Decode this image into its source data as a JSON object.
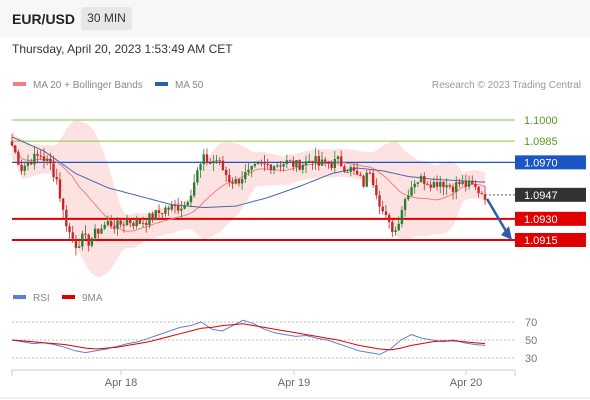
{
  "header": {
    "symbol": "EUR/USD",
    "timeframe": "30 MIN",
    "timestamp": "Thursday, April 20, 2023 1:53:49 AM CET"
  },
  "legend": {
    "ma20_label": "MA 20 + Bollinger Bands",
    "ma50_label": "MA 50",
    "credit": "Research © 2023 Trading Central"
  },
  "rsi_legend": {
    "rsi_label": "RSI",
    "ma_label": "9MA"
  },
  "colors": {
    "ma20": "#f08080",
    "bollinger_fill": "#fde2e2",
    "ma50": "#4a67b0",
    "candle_up": "#2e7d32",
    "candle_down": "#c62828",
    "support": "#e00000",
    "resistance": "#8bc34a",
    "pivot": "#1a56c4",
    "last_price": "#333333",
    "arrow": "#2d5fa6",
    "rsi": "#5b7fd6",
    "rsi_ma": "#e00000"
  },
  "chart_data": [
    {
      "type": "candlestick",
      "title": "EUR/USD 30 MIN",
      "x_tick_labels": [
        "Apr 18",
        "Apr 19",
        "Apr 20"
      ],
      "ylim": [
        1.0895,
        1.1015
      ],
      "levels": [
        {
          "value": 1.1,
          "label": "1.1000",
          "kind": "resistance"
        },
        {
          "value": 1.0985,
          "label": "1.0985",
          "kind": "resistance"
        },
        {
          "value": 1.097,
          "label": "1.0970",
          "kind": "pivot"
        },
        {
          "value": 1.093,
          "label": "1.0930",
          "kind": "support"
        },
        {
          "value": 1.0915,
          "label": "1.0915",
          "kind": "support"
        }
      ],
      "last_price": {
        "value": 1.0947,
        "label": "1.0947"
      },
      "forecast": "down toward 1.0915",
      "series": [
        {
          "name": "MA 20 + Bollinger Bands",
          "indicator": "ma20_bollinger"
        },
        {
          "name": "MA 50",
          "indicator": "ma50"
        }
      ],
      "price_path": [
        [
          0,
          1.0982
        ],
        [
          3,
          1.0966
        ],
        [
          6,
          1.0972
        ],
        [
          9,
          1.0975
        ],
        [
          12,
          1.0968
        ],
        [
          14,
          1.0958
        ],
        [
          16,
          1.0935
        ],
        [
          18,
          1.092
        ],
        [
          20,
          1.0912
        ],
        [
          22,
          1.0916
        ],
        [
          24,
          1.0914
        ],
        [
          27,
          1.0922
        ],
        [
          30,
          1.0927
        ],
        [
          33,
          1.0925
        ],
        [
          36,
          1.0929
        ],
        [
          39,
          1.0927
        ],
        [
          42,
          1.0929
        ],
        [
          45,
          1.0933
        ],
        [
          48,
          1.0937
        ],
        [
          51,
          1.0938
        ],
        [
          54,
          1.094
        ],
        [
          56,
          1.095
        ],
        [
          58,
          1.0963
        ],
        [
          60,
          1.0972
        ],
        [
          62,
          1.097
        ],
        [
          64,
          1.0972
        ],
        [
          66,
          1.0965
        ],
        [
          68,
          1.0958
        ],
        [
          70,
          1.0956
        ],
        [
          72,
          1.096
        ],
        [
          74,
          1.0962
        ],
        [
          77,
          1.0967
        ],
        [
          80,
          1.0968
        ],
        [
          83,
          1.0969
        ],
        [
          86,
          1.097
        ],
        [
          89,
          1.0968
        ],
        [
          92,
          1.097
        ],
        [
          94,
          1.0973
        ],
        [
          96,
          1.0968
        ],
        [
          98,
          1.097
        ],
        [
          100,
          1.0969
        ],
        [
          102,
          1.0971
        ],
        [
          104,
          1.0967
        ],
        [
          106,
          1.0965
        ],
        [
          108,
          1.096
        ],
        [
          110,
          1.0955
        ],
        [
          112,
          1.0965
        ],
        [
          114,
          1.095
        ],
        [
          116,
          1.0935
        ],
        [
          118,
          1.0925
        ],
        [
          120,
          1.0922
        ],
        [
          122,
          1.0938
        ],
        [
          124,
          1.095
        ],
        [
          126,
          1.0957
        ],
        [
          128,
          1.0958
        ],
        [
          130,
          1.0957
        ],
        [
          132,
          1.0955
        ],
        [
          134,
          1.0957
        ],
        [
          136,
          1.0954
        ],
        [
          138,
          1.0953
        ],
        [
          140,
          1.0955
        ],
        [
          142,
          1.0954
        ],
        [
          144,
          1.0953
        ],
        [
          146,
          1.095
        ],
        [
          148,
          1.0947
        ]
      ],
      "ma50_path": [
        [
          0,
          1.0988
        ],
        [
          10,
          1.0978
        ],
        [
          20,
          1.0962
        ],
        [
          30,
          1.0952
        ],
        [
          40,
          1.0946
        ],
        [
          50,
          1.094
        ],
        [
          60,
          1.0938
        ],
        [
          70,
          1.0939
        ],
        [
          80,
          1.0945
        ],
        [
          90,
          1.0953
        ],
        [
          100,
          1.0962
        ],
        [
          108,
          1.0966
        ],
        [
          116,
          1.0964
        ],
        [
          124,
          1.096
        ],
        [
          132,
          1.0958
        ],
        [
          140,
          1.0957
        ],
        [
          148,
          1.0956
        ]
      ]
    },
    {
      "type": "line",
      "title": "RSI",
      "y_ticks": [
        70,
        50,
        30
      ],
      "ylim": [
        20,
        80
      ],
      "series": [
        {
          "name": "RSI",
          "values": [
            50,
            48,
            46,
            47,
            45,
            42,
            38,
            36,
            38,
            40,
            43,
            46,
            48,
            52,
            56,
            60,
            64,
            66,
            70,
            62,
            60,
            66,
            72,
            68,
            62,
            58,
            56,
            54,
            55,
            52,
            50,
            46,
            42,
            38,
            36,
            34,
            40,
            50,
            56,
            52,
            50,
            48,
            50,
            47,
            45,
            44
          ]
        },
        {
          "name": "9MA",
          "values": [
            50,
            49,
            48,
            47,
            46,
            45,
            43,
            41,
            40,
            41,
            42,
            44,
            46,
            48,
            51,
            54,
            57,
            60,
            63,
            64,
            66,
            67,
            68,
            66,
            64,
            62,
            60,
            58,
            56,
            54,
            52,
            50,
            47,
            44,
            42,
            40,
            39,
            41,
            44,
            46,
            48,
            49,
            49,
            48,
            47,
            46
          ]
        }
      ]
    }
  ]
}
